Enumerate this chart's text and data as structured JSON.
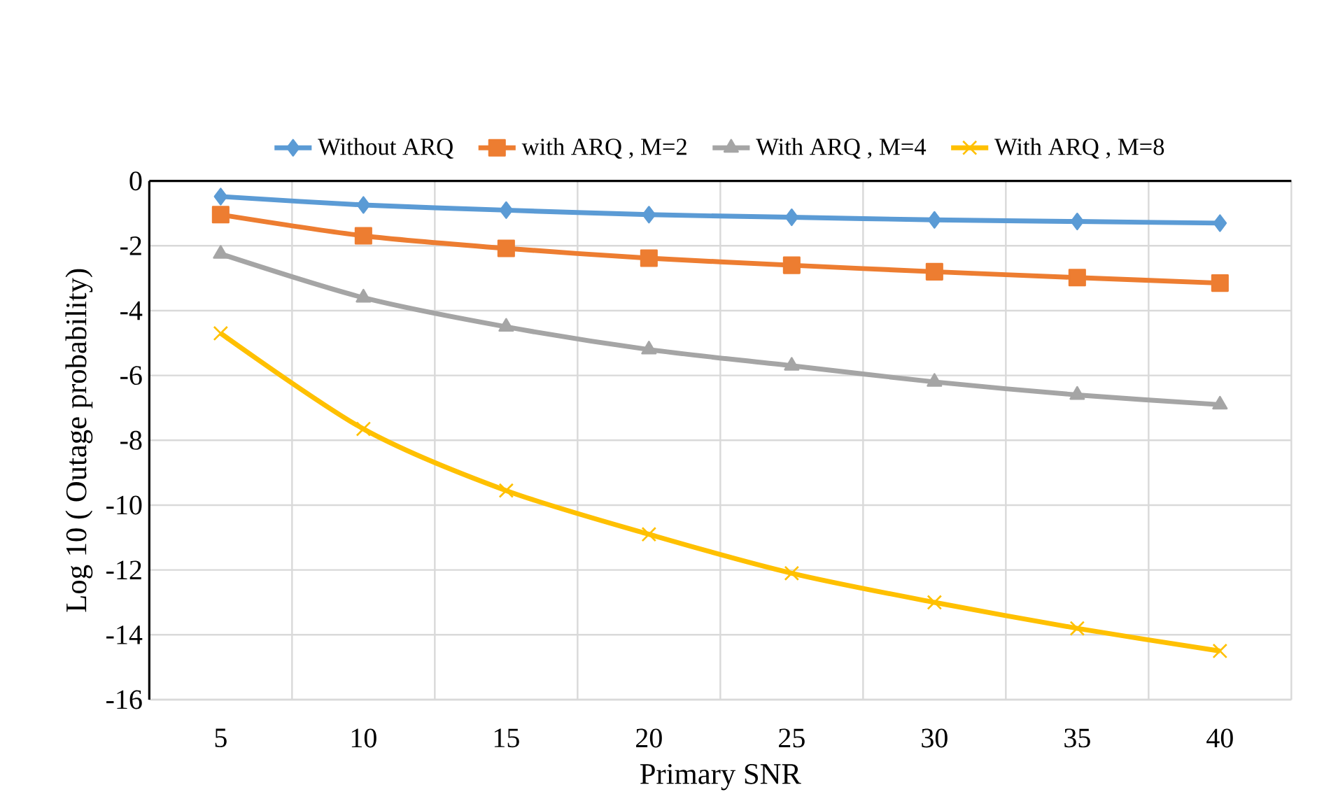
{
  "chart_data": {
    "type": "line",
    "xlabel": "Primary SNR",
    "ylabel": "Log 10 ( Outage probability)",
    "categories": [
      "5",
      "10",
      "15",
      "20",
      "25",
      "30",
      "35",
      "40"
    ],
    "series": [
      {
        "name": "Without ARQ",
        "color": "#5b9bd5",
        "marker": "diamond",
        "values": [
          -0.48,
          -0.74,
          -0.9,
          -1.04,
          -1.12,
          -1.2,
          -1.25,
          -1.3
        ]
      },
      {
        "name": "with ARQ , M=2",
        "color": "#ed7d31",
        "marker": "square",
        "values": [
          -1.04,
          -1.69,
          -2.08,
          -2.38,
          -2.6,
          -2.8,
          -2.98,
          -3.15
        ]
      },
      {
        "name": "With ARQ , M=4",
        "color": "#a5a5a5",
        "marker": "triangle",
        "values": [
          -2.25,
          -3.6,
          -4.5,
          -5.2,
          -5.7,
          -6.2,
          -6.6,
          -6.9
        ]
      },
      {
        "name": "With ARQ ,  M=8",
        "color": "#ffc000",
        "marker": "cross",
        "values": [
          -4.7,
          -7.65,
          -9.55,
          -10.9,
          -12.1,
          -13.0,
          -13.8,
          -14.5
        ]
      }
    ],
    "ylim": [
      -16,
      0
    ],
    "yticks": [
      -16,
      -14,
      -12,
      -10,
      -8,
      -6,
      -4,
      -2,
      0
    ],
    "grid": true,
    "legend": "top"
  }
}
